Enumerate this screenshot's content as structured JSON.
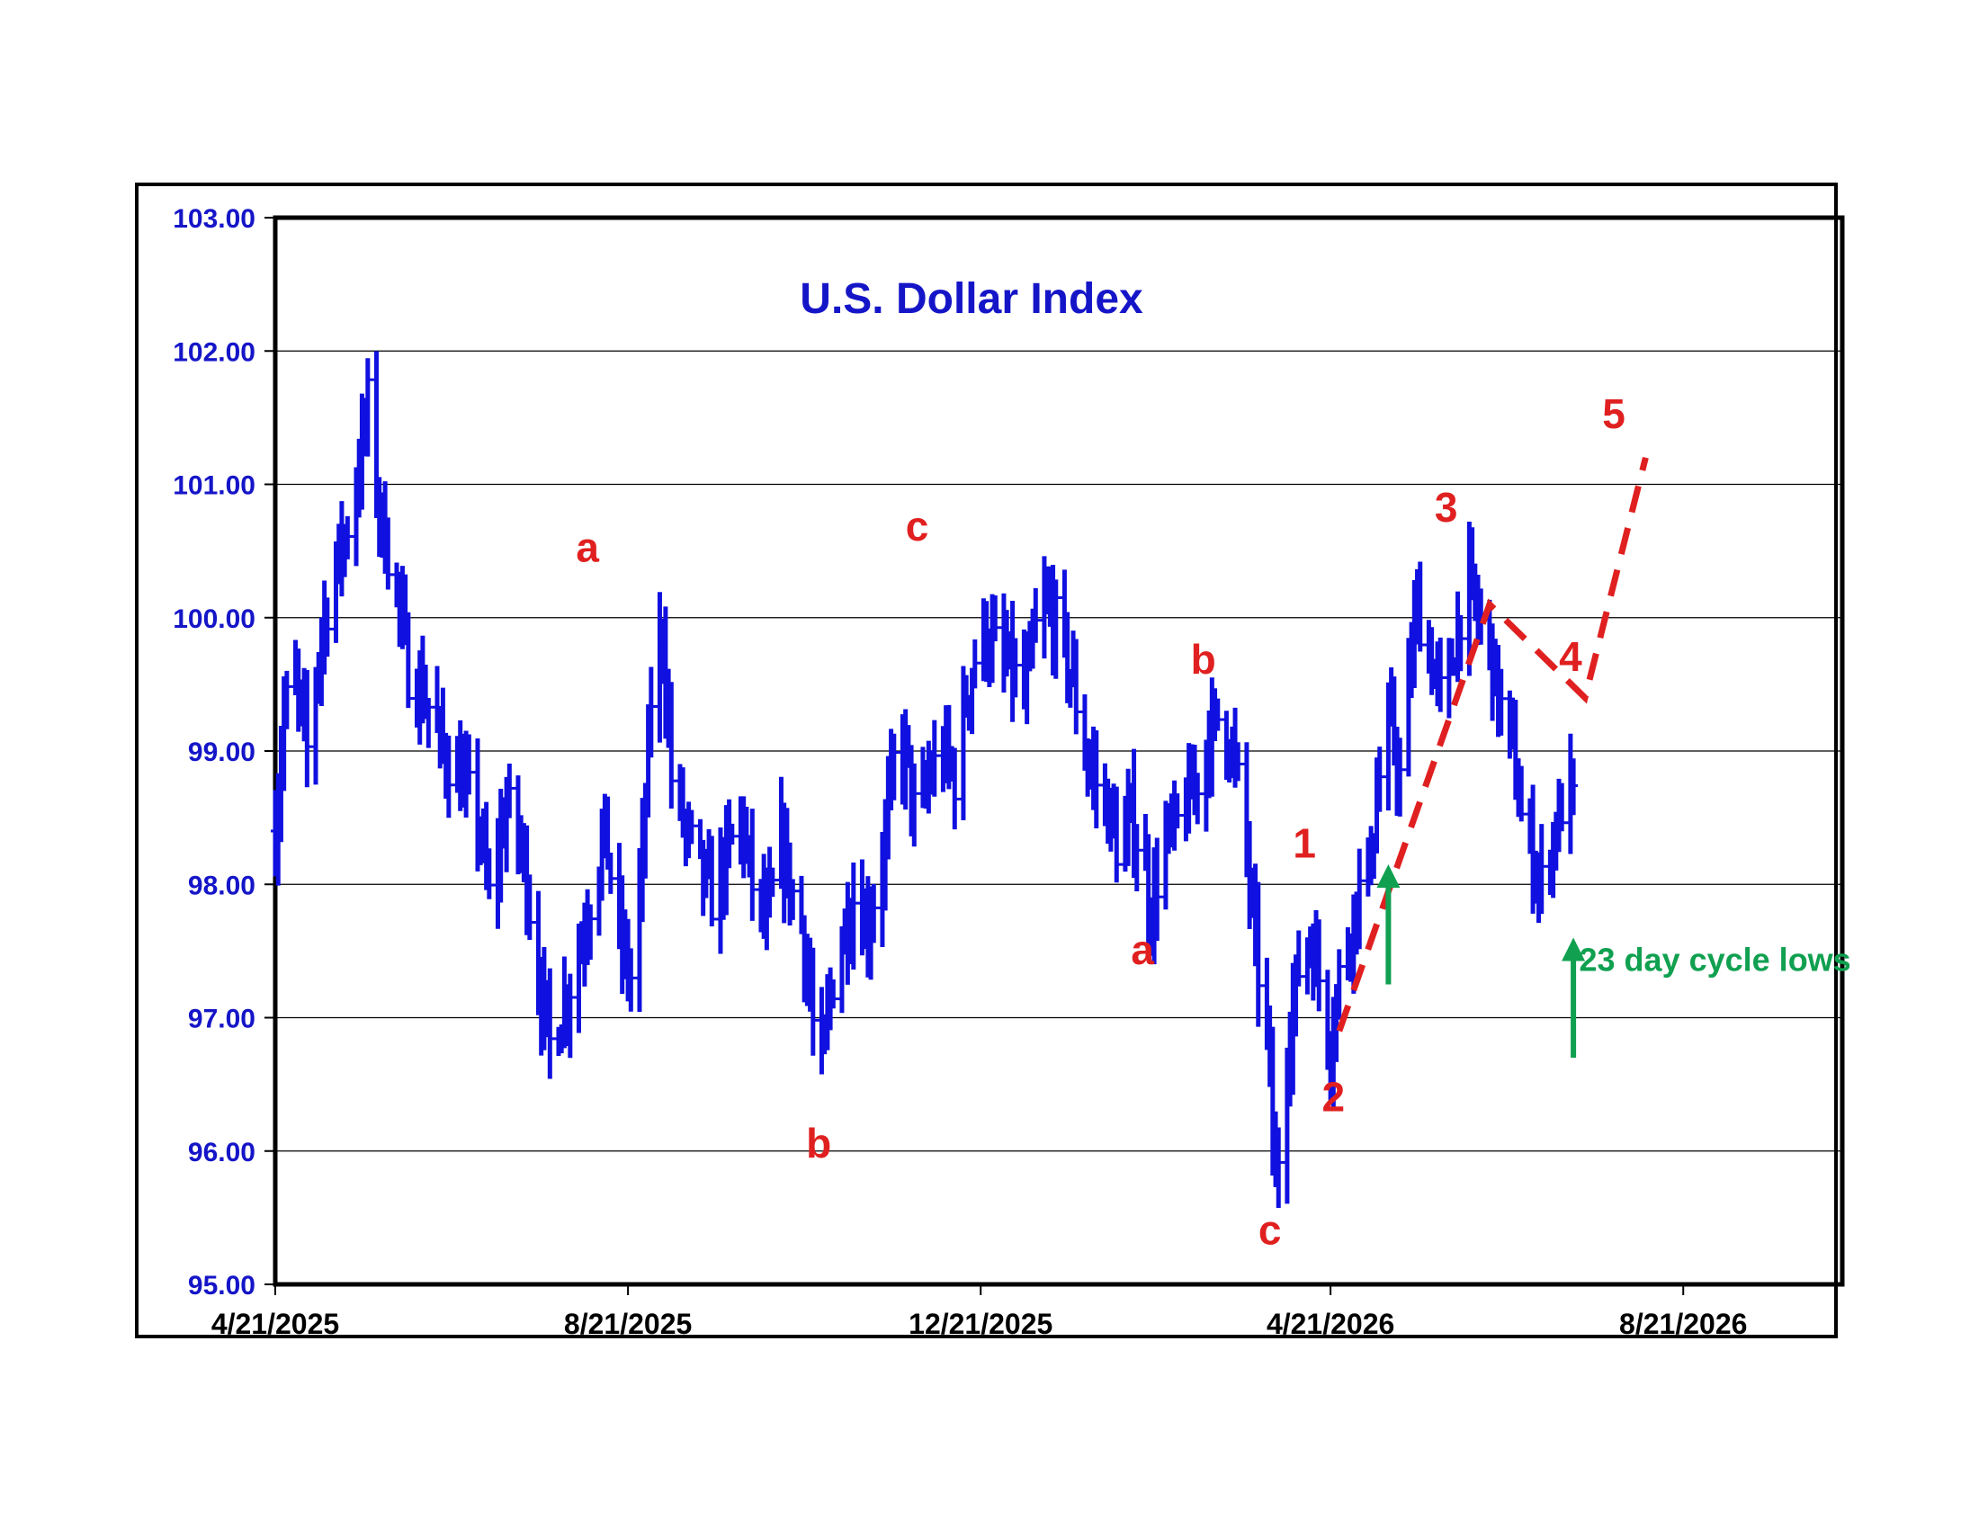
{
  "chart_data": {
    "type": "ohlc",
    "title": "U.S. Dollar Index",
    "xlabel": "",
    "ylabel": "",
    "x_ticks": [
      "4/21/2025",
      "8/21/2025",
      "12/21/2025",
      "4/21/2026",
      "8/21/2026"
    ],
    "y_ticks": [
      "95.00",
      "96.00",
      "97.00",
      "98.00",
      "99.00",
      "100.00",
      "101.00",
      "102.00",
      "103.00"
    ],
    "xlim": [
      "4/21/2025",
      "10/15/2026"
    ],
    "ylim": [
      95,
      103
    ],
    "grid": "horizontal",
    "colors": {
      "price": "#1010e0",
      "wave_labels": "#e02020",
      "projection": "#e02020",
      "cycle": "#10a050",
      "axis_text": "#1515c8"
    },
    "anchors": [
      [
        "2025-04-21",
        98.4
      ],
      [
        "2025-04-24",
        99.3
      ],
      [
        "2025-04-28",
        99.5
      ],
      [
        "2025-05-02",
        99.0
      ],
      [
        "2025-05-07",
        99.9
      ],
      [
        "2025-05-12",
        100.4
      ],
      [
        "2025-05-15",
        100.6
      ],
      [
        "2025-05-19",
        101.0
      ],
      [
        "2025-05-23",
        101.6
      ],
      [
        "2025-05-27",
        100.8
      ],
      [
        "2025-06-02",
        100.2
      ],
      [
        "2025-06-06",
        99.6
      ],
      [
        "2025-06-12",
        99.4
      ],
      [
        "2025-06-18",
        99.0
      ],
      [
        "2025-06-24",
        98.8
      ],
      [
        "2025-06-30",
        98.5
      ],
      [
        "2025-07-04",
        97.9
      ],
      [
        "2025-07-10",
        98.6
      ],
      [
        "2025-07-16",
        98.2
      ],
      [
        "2025-07-21",
        97.3
      ],
      [
        "2025-07-25",
        96.8
      ],
      [
        "2025-07-30",
        97.1
      ],
      [
        "2025-08-04",
        97.5
      ],
      [
        "2025-08-08",
        97.9
      ],
      [
        "2025-08-13",
        98.4
      ],
      [
        "2025-08-18",
        97.6
      ],
      [
        "2025-08-22",
        97.3
      ],
      [
        "2025-08-26",
        98.2
      ],
      [
        "2025-08-29",
        99.4
      ],
      [
        "2025-09-02",
        99.9
      ],
      [
        "2025-09-05",
        98.8
      ],
      [
        "2025-09-10",
        98.4
      ],
      [
        "2025-09-15",
        98.1
      ],
      [
        "2025-09-19",
        97.9
      ],
      [
        "2025-09-24",
        98.2
      ],
      [
        "2025-09-29",
        98.5
      ],
      [
        "2025-10-03",
        98.0
      ],
      [
        "2025-10-08",
        97.7
      ],
      [
        "2025-10-13",
        98.3
      ],
      [
        "2025-10-16",
        98.0
      ],
      [
        "2025-10-20",
        97.7
      ],
      [
        "2025-10-23",
        97.2
      ],
      [
        "2025-10-26",
        96.4
      ],
      [
        "2025-10-30",
        97.2
      ],
      [
        "2025-11-03",
        97.6
      ],
      [
        "2025-11-07",
        97.9
      ],
      [
        "2025-11-12",
        97.7
      ],
      [
        "2025-11-17",
        98.2
      ],
      [
        "2025-11-21",
        98.9
      ],
      [
        "2025-11-25",
        99.0
      ],
      [
        "2025-11-29",
        98.4
      ],
      [
        "2025-12-03",
        98.8
      ],
      [
        "2025-12-08",
        99.0
      ],
      [
        "2025-12-12",
        98.8
      ],
      [
        "2025-12-16",
        99.4
      ],
      [
        "2025-12-21",
        99.9
      ],
      [
        "2025-12-25",
        99.8
      ],
      [
        "2026-01-01",
        99.6
      ],
      [
        "2026-01-05",
        99.4
      ],
      [
        "2026-01-09",
        99.9
      ],
      [
        "2026-01-13",
        100.1
      ],
      [
        "2026-01-17",
        99.9
      ],
      [
        "2026-01-22",
        99.5
      ],
      [
        "2026-01-26",
        99.0
      ],
      [
        "2026-01-31",
        98.7
      ],
      [
        "2026-02-04",
        98.5
      ],
      [
        "2026-02-07",
        98.2
      ],
      [
        "2026-02-11",
        98.5
      ],
      [
        "2026-02-15",
        98.2
      ],
      [
        "2026-02-18",
        97.8
      ],
      [
        "2026-02-22",
        98.3
      ],
      [
        "2026-02-26",
        98.4
      ],
      [
        "2026-03-02",
        98.6
      ],
      [
        "2026-03-06",
        98.8
      ],
      [
        "2026-03-10",
        99.1
      ],
      [
        "2026-03-14",
        99.3
      ],
      [
        "2026-03-18",
        99.0
      ],
      [
        "2026-03-22",
        98.5
      ],
      [
        "2026-03-26",
        97.5
      ],
      [
        "2026-03-30",
        96.9
      ],
      [
        "2026-04-02",
        95.7
      ],
      [
        "2026-04-05",
        96.6
      ],
      [
        "2026-04-08",
        97.1
      ],
      [
        "2026-04-11",
        97.5
      ],
      [
        "2026-04-14",
        97.6
      ],
      [
        "2026-04-17",
        97.3
      ],
      [
        "2026-04-21",
        96.8
      ],
      [
        "2026-04-24",
        97.3
      ],
      [
        "2026-04-27",
        97.6
      ],
      [
        "2026-04-30",
        97.9
      ],
      [
        "2026-05-04",
        98.1
      ],
      [
        "2026-05-08",
        98.8
      ],
      [
        "2026-05-12",
        99.2
      ],
      [
        "2026-05-15",
        98.8
      ],
      [
        "2026-05-18",
        99.5
      ],
      [
        "2026-05-21",
        100.1
      ],
      [
        "2026-05-24",
        99.8
      ],
      [
        "2026-05-27",
        99.6
      ],
      [
        "2026-05-30",
        99.3
      ],
      [
        "2026-06-03",
        99.8
      ],
      [
        "2026-06-07",
        100.3
      ],
      [
        "2026-06-11",
        100.0
      ],
      [
        "2026-06-15",
        99.8
      ],
      [
        "2026-06-18",
        99.4
      ],
      [
        "2026-06-23",
        99.0
      ],
      [
        "2026-06-26",
        98.5
      ],
      [
        "2026-06-30",
        98.2
      ],
      [
        "2026-07-03",
        98.0
      ],
      [
        "2026-07-06",
        98.3
      ],
      [
        "2026-07-09",
        98.5
      ],
      [
        "2026-07-12",
        98.8
      ],
      [
        "2026-07-14",
        98.6
      ]
    ],
    "wave_labels": [
      {
        "text": "a",
        "date": "2025-08-07",
        "price": 100.42
      },
      {
        "text": "b",
        "date": "2025-10-26",
        "price": 95.95
      },
      {
        "text": "c",
        "date": "2025-11-29",
        "price": 100.58
      },
      {
        "text": "a",
        "date": "2026-02-15",
        "price": 97.4
      },
      {
        "text": "b",
        "date": "2026-03-08",
        "price": 99.58
      },
      {
        "text": "c",
        "date": "2026-03-31",
        "price": 95.3
      },
      {
        "text": "1",
        "date": "2026-04-12",
        "price": 98.2
      },
      {
        "text": "2",
        "date": "2026-04-22",
        "price": 96.3
      },
      {
        "text": "3",
        "date": "2026-05-31",
        "price": 100.72
      },
      {
        "text": "4",
        "date": "2026-07-13",
        "price": 99.6
      },
      {
        "text": "5",
        "date": "2026-07-28",
        "price": 101.42
      }
    ],
    "projection_path": [
      [
        "2026-04-24",
        96.9
      ],
      [
        "2026-06-15",
        100.1
      ],
      [
        "2026-07-18",
        99.4
      ],
      [
        "2026-08-08",
        101.2
      ]
    ],
    "cycle_arrows": [
      {
        "date": "2026-05-11",
        "from": 97.25,
        "to": 98.15
      },
      {
        "date": "2026-07-14",
        "from": 96.7,
        "to": 97.6
      }
    ],
    "cycle_label": "23 day cycle lows",
    "cycle_label_pos": {
      "date": "2026-07-16",
      "price": 97.35
    }
  }
}
